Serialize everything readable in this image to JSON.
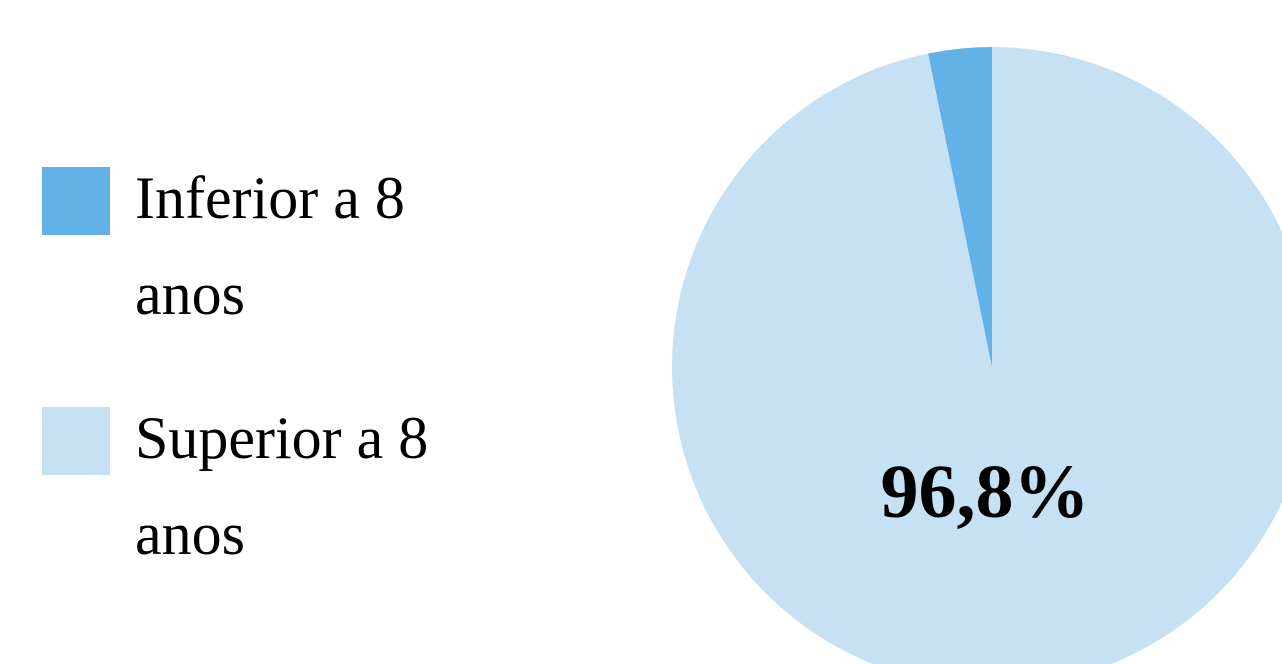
{
  "chart_data": {
    "type": "pie",
    "categories": [
      "Inferior a 8 anos",
      "Superior a 8 anos"
    ],
    "values": [
      3.2,
      96.8
    ],
    "colors": [
      "#62b2e7",
      "#c5e1f3"
    ],
    "data_labels": [
      "",
      "96,8%"
    ],
    "legend_position": "left",
    "title": ""
  }
}
